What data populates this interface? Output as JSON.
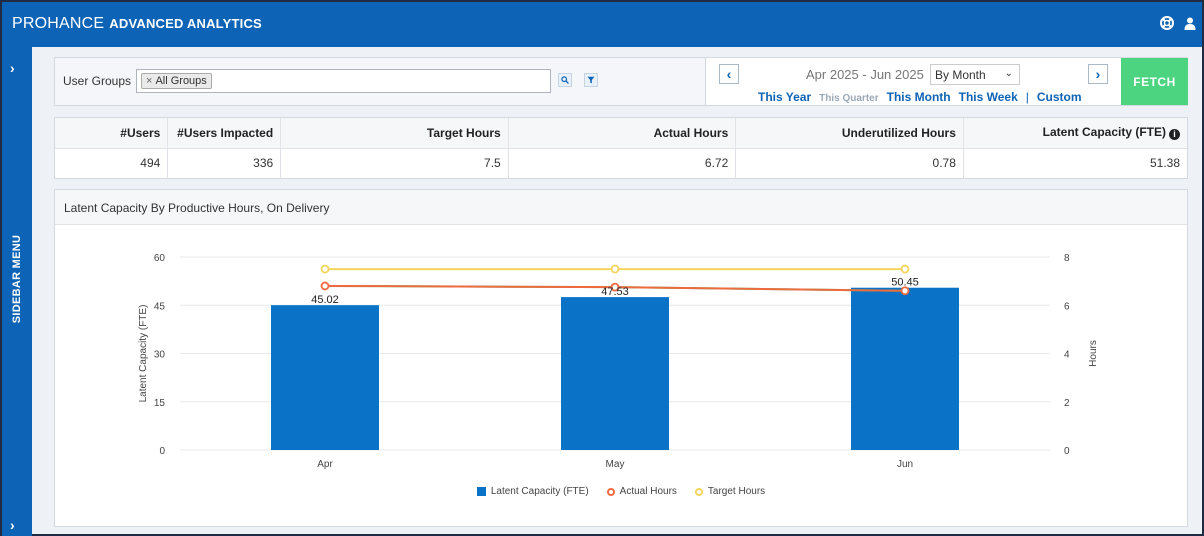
{
  "header": {
    "brand_main": "PROHANCE",
    "brand_sub": "ADVANCED ANALYTICS",
    "icons": [
      "help-lifebuoy-icon",
      "user-icon"
    ]
  },
  "sidebar": {
    "label": "SIDEBAR MENU",
    "expand_icon": "chevron-right-icon"
  },
  "filters": {
    "user_groups_label": "User Groups",
    "selected_chip": "All Groups",
    "chip_remove": "×",
    "search_icon": "search-icon",
    "filter_icon": "filter-icon",
    "date_range": "Apr 2025 - Jun 2025",
    "period": "By Month",
    "quick_links": {
      "this_year": "This Year",
      "this_quarter": "This Quarter",
      "this_month": "This Month",
      "this_week": "This Week",
      "separator": "|",
      "custom": "Custom"
    },
    "prev": "‹",
    "next": "›",
    "fetch_label": "FETCH"
  },
  "summary": {
    "headers": [
      "#Users",
      "#Users Impacted",
      "Target Hours",
      "Actual Hours",
      "Underutilized Hours",
      "Latent Capacity (FTE)"
    ],
    "values": [
      "494",
      "336",
      "7.5",
      "6.72",
      "0.78",
      "51.38"
    ]
  },
  "chart_panel": {
    "title": "Latent Capacity By Productive Hours, On Delivery"
  },
  "chart_data": {
    "type": "bar",
    "title": "Latent Capacity By Productive Hours, On Delivery",
    "categories": [
      "Apr",
      "May",
      "Jun"
    ],
    "ylabel": "Latent Capacity (FTE)",
    "y2label": "Hours",
    "ylim": [
      0,
      60
    ],
    "y_ticks": [
      0,
      15,
      30,
      45,
      60
    ],
    "y2lim": [
      0,
      8
    ],
    "y2_ticks": [
      0,
      2,
      4,
      6,
      8
    ],
    "grid": true,
    "legend_position": "bottom",
    "series": [
      {
        "name": "Latent Capacity (FTE)",
        "type": "bar",
        "axis": "left",
        "color": "#0a73c8",
        "values": [
          45.02,
          47.53,
          50.45
        ],
        "data_labels": [
          "45.02",
          "47.53",
          "50.45"
        ]
      },
      {
        "name": "Actual Hours",
        "type": "line",
        "axis": "right",
        "color": "#f06a3f",
        "values": [
          6.8,
          6.75,
          6.6
        ]
      },
      {
        "name": "Target Hours",
        "type": "line",
        "axis": "right",
        "color": "#f4d65c",
        "values": [
          7.5,
          7.5,
          7.5
        ]
      }
    ],
    "extra_line": {
      "color": "#2ecc71",
      "values": [
        6.8,
        6.75,
        6.6
      ]
    }
  }
}
